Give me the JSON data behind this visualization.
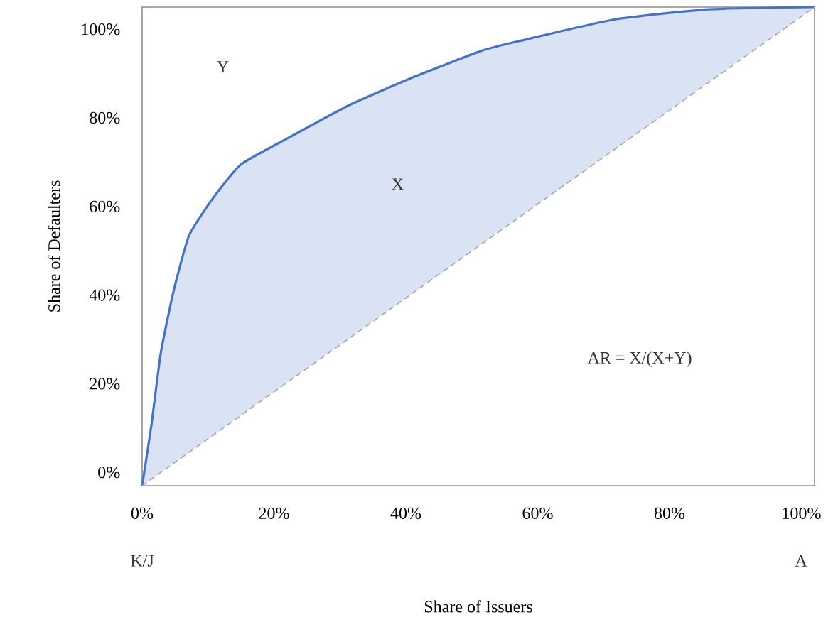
{
  "chart_data": {
    "type": "line",
    "xlabel": "Share of Issuers",
    "ylabel": "Share of Defaulters",
    "x": [
      0,
      1.4,
      2.8,
      4.7,
      7.1,
      10.8,
      15,
      22.2,
      31.6,
      41.5,
      51.6,
      57.4,
      71.6,
      86,
      102
    ],
    "series": [
      {
        "color": "#4472c4",
        "line_style": "solid",
        "values": [
          -3,
          10.6,
          26.7,
          40.5,
          53.4,
          62,
          69.5,
          75.5,
          83,
          89.4,
          95.2,
          97.4,
          102.2,
          104.5,
          105
        ],
        "lower": [
          -3,
          -1.5,
          0,
          2,
          4.5,
          8.4,
          12.9,
          20.5,
          30.5,
          40.9,
          51.6,
          57.8,
          72.8,
          88.1,
          105
        ],
        "upper": [
          -3,
          10.6,
          26.7,
          40.5,
          53.4,
          62,
          69.5,
          75.5,
          83,
          89.4,
          95.2,
          97.4,
          102.2,
          104.5,
          105
        ]
      },
      {
        "color": "#a6a6a6",
        "line_style": "dashed",
        "x": [
          0,
          102
        ],
        "values": [
          -3,
          105
        ]
      }
    ],
    "xlim": [
      0,
      102
    ],
    "ylim": [
      -3,
      105
    ],
    "xticks": [
      {
        "value": 0,
        "label": "0%"
      },
      {
        "value": 20,
        "label": "20%"
      },
      {
        "value": 40,
        "label": "40%"
      },
      {
        "value": 60,
        "label": "60%"
      },
      {
        "value": 80,
        "label": "80%"
      },
      {
        "value": 100,
        "label": "100%"
      }
    ],
    "yticks": [
      {
        "value": 0,
        "label": "0%"
      },
      {
        "value": 20,
        "label": "20%"
      },
      {
        "value": 40,
        "label": "40%"
      },
      {
        "value": 60,
        "label": "60%"
      },
      {
        "value": 80,
        "label": "80%"
      },
      {
        "value": 100,
        "label": "100%"
      }
    ],
    "annotations": [
      "Y",
      "X",
      "AR = X/(X+Y)",
      "K/J",
      "A"
    ],
    "grid": false,
    "marker": "none"
  }
}
